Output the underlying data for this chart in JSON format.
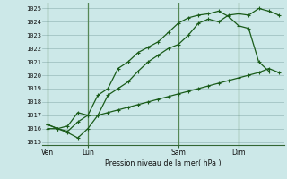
{
  "background_color": "#cce8e8",
  "plot_bg_color": "#cce8e8",
  "line_color": "#1a5c1a",
  "grid_color": "#99bbbb",
  "vline_color": "#558855",
  "title": "Pression niveau de la mer( hPa )",
  "ylabel_ticks": [
    1015,
    1016,
    1017,
    1018,
    1019,
    1020,
    1021,
    1022,
    1023,
    1024,
    1025
  ],
  "xtick_labels": [
    "Ven",
    "Lun",
    "Sam",
    "Dim"
  ],
  "xtick_positions": [
    0,
    4,
    13,
    19
  ],
  "ylim": [
    1014.8,
    1025.4
  ],
  "xlim": [
    -0.5,
    23.5
  ],
  "vlines": [
    0,
    4,
    13,
    19
  ],
  "series1_x": [
    0,
    1,
    2,
    3,
    4,
    5,
    6,
    7,
    8,
    9,
    10,
    11,
    12,
    13,
    14,
    15,
    16,
    17,
    18,
    19,
    20,
    21,
    22,
    23
  ],
  "series1_y": [
    1016.3,
    1016.0,
    1015.7,
    1015.3,
    1016.0,
    1017.0,
    1018.5,
    1019.0,
    1019.5,
    1020.3,
    1021.0,
    1021.5,
    1022.0,
    1022.3,
    1023.0,
    1023.9,
    1024.2,
    1024.0,
    1024.5,
    1024.6,
    1024.5,
    1025.0,
    1024.8,
    1024.5
  ],
  "series2_x": [
    0,
    1,
    2,
    3,
    4,
    5,
    6,
    7,
    8,
    9,
    10,
    11,
    12,
    13,
    14,
    15,
    16,
    17,
    18,
    19,
    20,
    21,
    22
  ],
  "series2_y": [
    1016.3,
    1016.0,
    1016.2,
    1017.2,
    1017.0,
    1018.5,
    1019.0,
    1020.5,
    1021.0,
    1021.7,
    1022.1,
    1022.5,
    1023.2,
    1023.9,
    1024.3,
    1024.5,
    1024.6,
    1024.8,
    1024.4,
    1023.7,
    1023.5,
    1021.0,
    1020.3
  ],
  "series3_x": [
    0,
    1,
    2,
    3,
    4,
    5,
    6,
    7,
    8,
    9,
    10,
    11,
    12,
    13,
    14,
    15,
    16,
    17,
    18,
    19,
    20,
    21,
    22,
    23
  ],
  "series3_y": [
    1016.0,
    1016.0,
    1015.8,
    1016.5,
    1017.0,
    1017.0,
    1017.2,
    1017.4,
    1017.6,
    1017.8,
    1018.0,
    1018.2,
    1018.4,
    1018.6,
    1018.8,
    1019.0,
    1019.2,
    1019.4,
    1019.6,
    1019.8,
    1020.0,
    1020.2,
    1020.5,
    1020.2
  ]
}
